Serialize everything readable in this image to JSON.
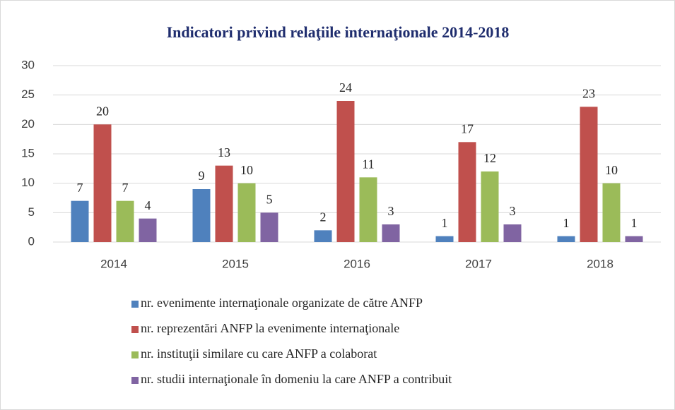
{
  "chart_data": {
    "type": "bar",
    "title": "Indicatori privind relaţiile internaţionale 2014-2018",
    "categories": [
      "2014",
      "2015",
      "2016",
      "2017",
      "2018"
    ],
    "series": [
      {
        "name": "nr. evenimente internaţionale organizate de către ANFP",
        "color": "#4f81bd",
        "values": [
          7,
          9,
          2,
          1,
          1
        ]
      },
      {
        "name": "nr. reprezentări ANFP la evenimente internaţionale",
        "color": "#c0504d",
        "values": [
          20,
          13,
          24,
          17,
          23
        ]
      },
      {
        "name": "nr. instituţii similare cu care ANFP a colaborat",
        "color": "#9bbb59",
        "values": [
          7,
          10,
          11,
          12,
          10
        ]
      },
      {
        "name": "nr. studii internaţionale în domeniu la care ANFP a contribuit",
        "color": "#8064a2",
        "values": [
          4,
          5,
          3,
          3,
          1
        ]
      }
    ],
    "ylim": [
      0,
      30
    ],
    "yticks": [
      0,
      5,
      10,
      15,
      20,
      25,
      30
    ],
    "grid": true,
    "legend": "bottom"
  }
}
